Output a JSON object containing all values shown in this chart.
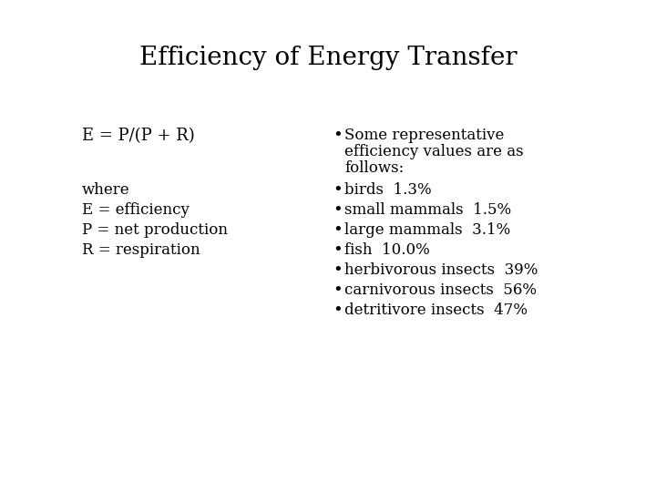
{
  "title": "Efficiency of Energy Transfer",
  "background_color": "#ffffff",
  "text_color": "#000000",
  "title_fontsize": 20,
  "body_fontsize": 12,
  "formula_fontsize": 13,
  "left_column": {
    "formula": "E = P/(P + R)",
    "definitions": [
      "where",
      "E = efficiency",
      "P = net production",
      "R = respiration"
    ]
  },
  "right_column": {
    "intro_lines": [
      "Some representative",
      "efficiency values are as",
      "follows:"
    ],
    "bullets": [
      "birds  1.3%",
      "small mammals  1.5%",
      "large mammals  3.1%",
      "fish  10.0%",
      "herbivorous insects  39%",
      "carnivorous insects  56%",
      "detritivore insects  47%"
    ]
  }
}
